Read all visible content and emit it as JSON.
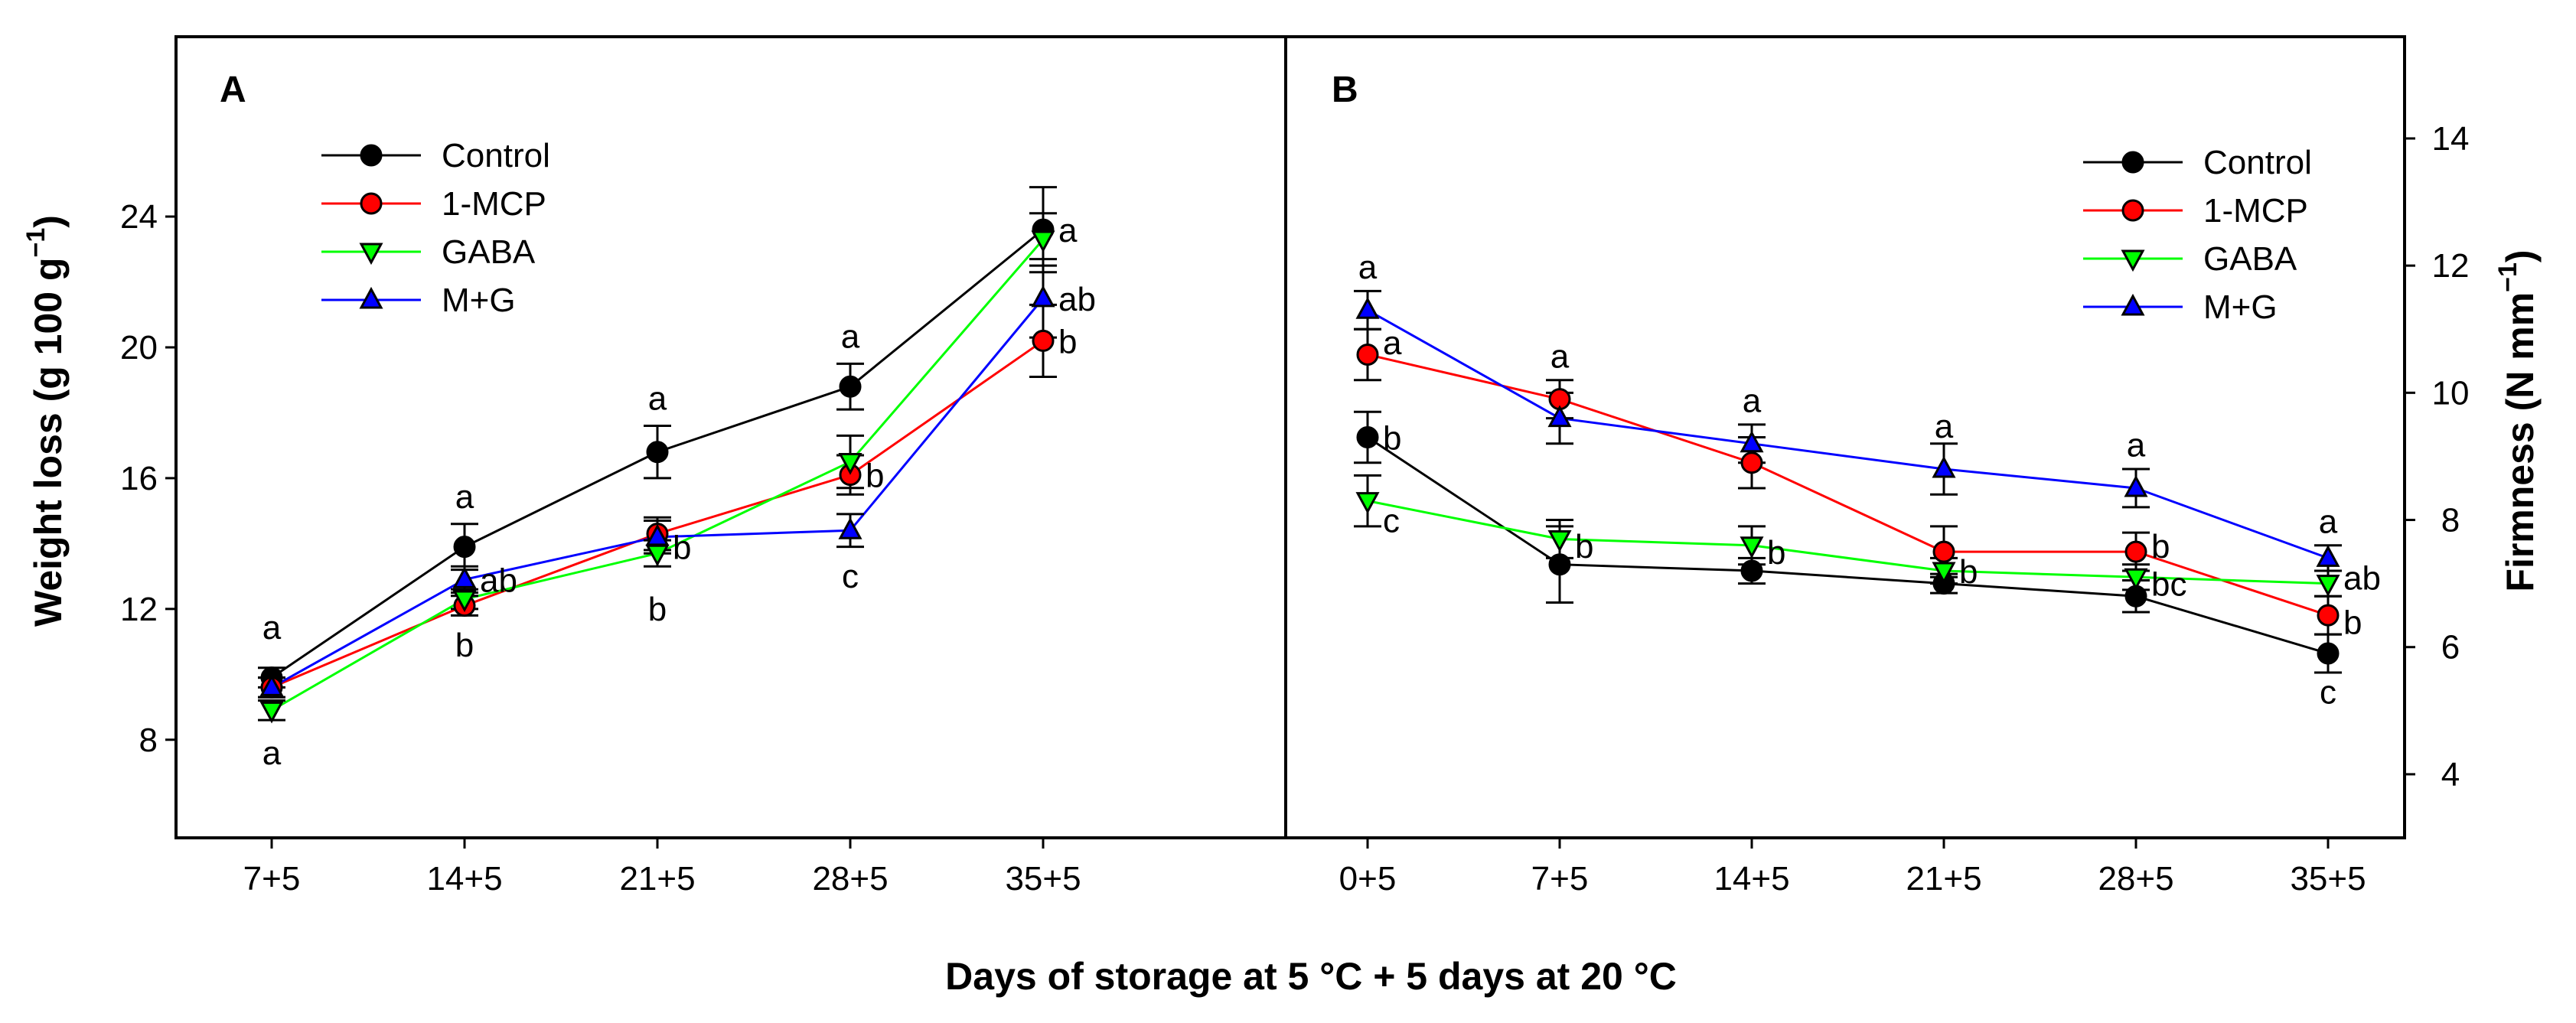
{
  "figure": {
    "xlabel": "Days of storage at 5 °C + 5 days at 20 °C"
  },
  "chart_data": [
    {
      "type": "line",
      "panel": "A",
      "title": "",
      "ylabel": "Weight loss (g 100 g",
      "ylabel_sup": "−1",
      "ylabel_close": ")",
      "ylim": [
        5,
        29.5
      ],
      "yticks": [
        8,
        12,
        16,
        20,
        24
      ],
      "categories": [
        "7+5",
        "14+5",
        "21+5",
        "28+5",
        "35+5"
      ],
      "legend": {
        "placement": "top-left"
      },
      "series": [
        {
          "name": "Control",
          "color": "#000000",
          "marker": "circle",
          "values": [
            9.9,
            13.9,
            16.8,
            18.8,
            23.6
          ],
          "errors": [
            0.3,
            0.7,
            0.8,
            0.7,
            1.3
          ]
        },
        {
          "name": "1-MCP",
          "color": "#ff0000",
          "marker": "circle",
          "values": [
            9.6,
            12.1,
            14.3,
            16.1,
            20.2
          ],
          "errors": [
            0.3,
            0.3,
            0.5,
            0.6,
            1.1
          ]
        },
        {
          "name": "GABA",
          "color": "#00ff00",
          "marker": "triangle-down",
          "values": [
            8.9,
            12.3,
            13.7,
            16.5,
            23.3
          ],
          "errors": [
            0.3,
            0.3,
            0.4,
            0.8,
            0.8
          ]
        },
        {
          "name": "M+G",
          "color": "#0000ff",
          "marker": "triangle-up",
          "values": [
            9.6,
            12.9,
            14.2,
            14.4,
            21.5
          ],
          "errors": [
            0.3,
            0.4,
            0.5,
            0.5,
            1.2
          ]
        }
      ],
      "annotations": [
        {
          "text": "a",
          "cat": 0,
          "y": 10.9,
          "pos": "above"
        },
        {
          "text": "a",
          "cat": 0,
          "y": 8.0,
          "pos": "below"
        },
        {
          "text": "a",
          "cat": 1,
          "y": 14.9,
          "pos": "above"
        },
        {
          "text": "ab",
          "cat": 1,
          "y": 12.9,
          "pos": "right"
        },
        {
          "text": "b",
          "cat": 1,
          "y": 11.3,
          "pos": "below"
        },
        {
          "text": "a",
          "cat": 2,
          "y": 17.9,
          "pos": "above"
        },
        {
          "text": "b",
          "cat": 2,
          "y": 13.9,
          "pos": "right"
        },
        {
          "text": "b",
          "cat": 2,
          "y": 12.4,
          "pos": "below"
        },
        {
          "text": "a",
          "cat": 3,
          "y": 19.8,
          "pos": "above"
        },
        {
          "text": "b",
          "cat": 3,
          "y": 16.1,
          "pos": "right"
        },
        {
          "text": "c",
          "cat": 3,
          "y": 13.4,
          "pos": "below"
        },
        {
          "text": "a",
          "cat": 4,
          "y": 23.6,
          "pos": "right"
        },
        {
          "text": "ab",
          "cat": 4,
          "y": 21.5,
          "pos": "right"
        },
        {
          "text": "b",
          "cat": 4,
          "y": 20.2,
          "pos": "right"
        }
      ]
    },
    {
      "type": "line",
      "panel": "B",
      "title": "",
      "ylabel": "Firmness (N mm",
      "ylabel_sup": "−1",
      "ylabel_close": ")",
      "ylim": [
        3.0,
        15.6
      ],
      "yticks": [
        4,
        6,
        8,
        10,
        12,
        14
      ],
      "categories": [
        "0+5",
        "7+5",
        "14+5",
        "21+5",
        "28+5",
        "35+5"
      ],
      "legend": {
        "placement": "top-right"
      },
      "series": [
        {
          "name": "Control",
          "color": "#000000",
          "marker": "circle",
          "values": [
            9.3,
            7.3,
            7.2,
            7.0,
            6.8,
            5.9
          ],
          "errors": [
            0.4,
            0.6,
            0.2,
            0.15,
            0.25,
            0.3
          ]
        },
        {
          "name": "1-MCP",
          "color": "#ff0000",
          "marker": "circle",
          "values": [
            10.6,
            9.9,
            8.9,
            7.5,
            7.5,
            6.5
          ],
          "errors": [
            0.4,
            0.3,
            0.4,
            0.4,
            0.3,
            0.3
          ]
        },
        {
          "name": "GABA",
          "color": "#00ff00",
          "marker": "triangle-down",
          "values": [
            8.3,
            7.7,
            7.6,
            7.2,
            7.1,
            7.0
          ],
          "errors": [
            0.4,
            0.3,
            0.3,
            0.2,
            0.2,
            0.2
          ]
        },
        {
          "name": "M+G",
          "color": "#0000ff",
          "marker": "triangle-up",
          "values": [
            11.3,
            9.6,
            9.2,
            8.8,
            8.5,
            7.4
          ],
          "errors": [
            0.3,
            0.4,
            0.3,
            0.4,
            0.3,
            0.2
          ]
        }
      ],
      "annotations": [
        {
          "text": "a",
          "cat": 0,
          "y": 11.7,
          "pos": "above"
        },
        {
          "text": "a",
          "cat": 0,
          "y": 10.8,
          "pos": "right"
        },
        {
          "text": "b",
          "cat": 0,
          "y": 9.3,
          "pos": "right"
        },
        {
          "text": "c",
          "cat": 0,
          "y": 8.0,
          "pos": "right"
        },
        {
          "text": "a",
          "cat": 1,
          "y": 10.3,
          "pos": "above"
        },
        {
          "text": "b",
          "cat": 1,
          "y": 7.6,
          "pos": "right"
        },
        {
          "text": "a",
          "cat": 2,
          "y": 9.6,
          "pos": "above"
        },
        {
          "text": "b",
          "cat": 2,
          "y": 7.5,
          "pos": "right"
        },
        {
          "text": "a",
          "cat": 3,
          "y": 9.2,
          "pos": "above"
        },
        {
          "text": "b",
          "cat": 3,
          "y": 7.2,
          "pos": "right"
        },
        {
          "text": "a",
          "cat": 4,
          "y": 8.9,
          "pos": "above"
        },
        {
          "text": "b",
          "cat": 4,
          "y": 7.6,
          "pos": "right"
        },
        {
          "text": "bc",
          "cat": 4,
          "y": 7.0,
          "pos": "right"
        },
        {
          "text": "a",
          "cat": 5,
          "y": 7.7,
          "pos": "above"
        },
        {
          "text": "ab",
          "cat": 5,
          "y": 7.1,
          "pos": "right"
        },
        {
          "text": "b",
          "cat": 5,
          "y": 6.4,
          "pos": "right"
        },
        {
          "text": "c",
          "cat": 5,
          "y": 5.5,
          "pos": "below"
        }
      ]
    }
  ]
}
